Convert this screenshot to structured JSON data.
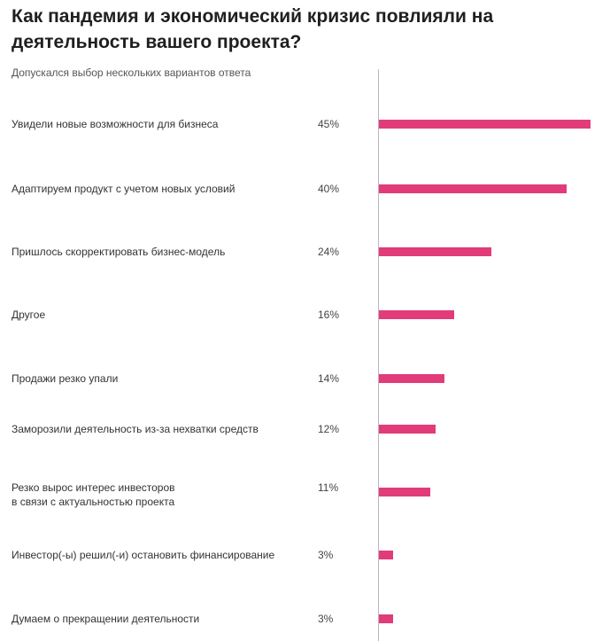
{
  "chart_data": {
    "type": "bar",
    "orientation": "horizontal",
    "title": "Как пандемия и экономический кризис повлияли на деятельность вашего проекта?",
    "subtitle": "Допускался выбор нескольких вариантов ответа",
    "unit": "%",
    "xlim": [
      0,
      45
    ],
    "grid": false,
    "legend": "none",
    "bar_color": "#e23b7a",
    "categories": [
      "Увидели новые возможности для бизнеса",
      "Адаптируем продукт с учетом новых условий",
      "Пришлось скорректировать бизнес-модель",
      "Другое",
      "Продажи резко упали",
      "Заморозили деятельность из-за нехватки средств",
      "Резко вырос интерес инвесторов\nв связи с актуальностью проекта",
      "Инвестор(-ы) решил(-и) остановить финансирование",
      "Думаем о прекращении деятельности"
    ],
    "values": [
      45,
      40,
      24,
      16,
      14,
      12,
      11,
      3,
      3
    ],
    "value_labels": [
      "45%",
      "40%",
      "24%",
      "16%",
      "14%",
      "12%",
      "11%",
      "3%",
      "3%"
    ]
  }
}
